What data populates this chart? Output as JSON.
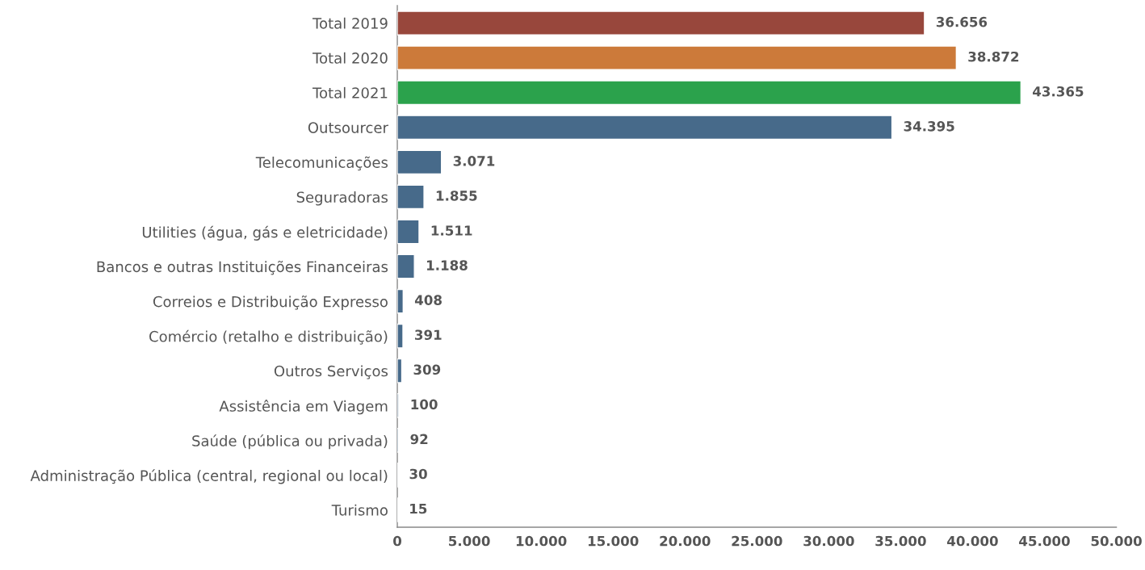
{
  "chart_data": {
    "type": "bar",
    "orientation": "horizontal",
    "categories": [
      "Total 2019",
      "Total 2020",
      "Total 2021",
      "Outsourcer",
      "Telecomunicações",
      "Seguradoras",
      "Utilities (água, gás e eletricidade)",
      "Bancos e outras Instituições Financeiras",
      "Correios e Distribuição Expresso",
      "Comércio (retalho e distribuição)",
      "Outros Serviços",
      "Assistência em Viagem",
      "Saúde (pública ou privada)",
      "Administração Pública (central, regional ou local)",
      "Turismo"
    ],
    "values": [
      36656,
      38872,
      43365,
      34395,
      3071,
      1855,
      1511,
      1188,
      408,
      391,
      309,
      100,
      92,
      30,
      15
    ],
    "value_labels": [
      "36.656",
      "38.872",
      "43.365",
      "34.395",
      "3.071",
      "1.855",
      "1.511",
      "1.188",
      "408",
      "391",
      "309",
      "100",
      "92",
      "30",
      "15"
    ],
    "colors": [
      "#98473c",
      "#cc7a3a",
      "#2ba24c",
      "#476a8a",
      "#476a8a",
      "#476a8a",
      "#476a8a",
      "#476a8a",
      "#476a8a",
      "#476a8a",
      "#476a8a",
      "#476a8a",
      "#476a8a",
      "#476a8a",
      "#476a8a"
    ],
    "xlim": [
      0,
      50000
    ],
    "xticks": [
      0,
      {
        "value": 5000,
        "label": "5.000"
      },
      {
        "value": 10000,
        "label": "10.000"
      },
      {
        "value": 15000,
        "label": "15.000"
      },
      {
        "value": 20000,
        "label": "20.000"
      },
      {
        "value": 25000,
        "label": "25.000"
      },
      {
        "value": 30000,
        "label": "30.000"
      },
      {
        "value": 35000,
        "label": "35.000"
      },
      {
        "value": 40000,
        "label": "40.000"
      },
      {
        "value": 45000,
        "label": "45.000"
      },
      {
        "value": 50000,
        "label": "50.000"
      }
    ],
    "grid": false,
    "legend": false
  }
}
